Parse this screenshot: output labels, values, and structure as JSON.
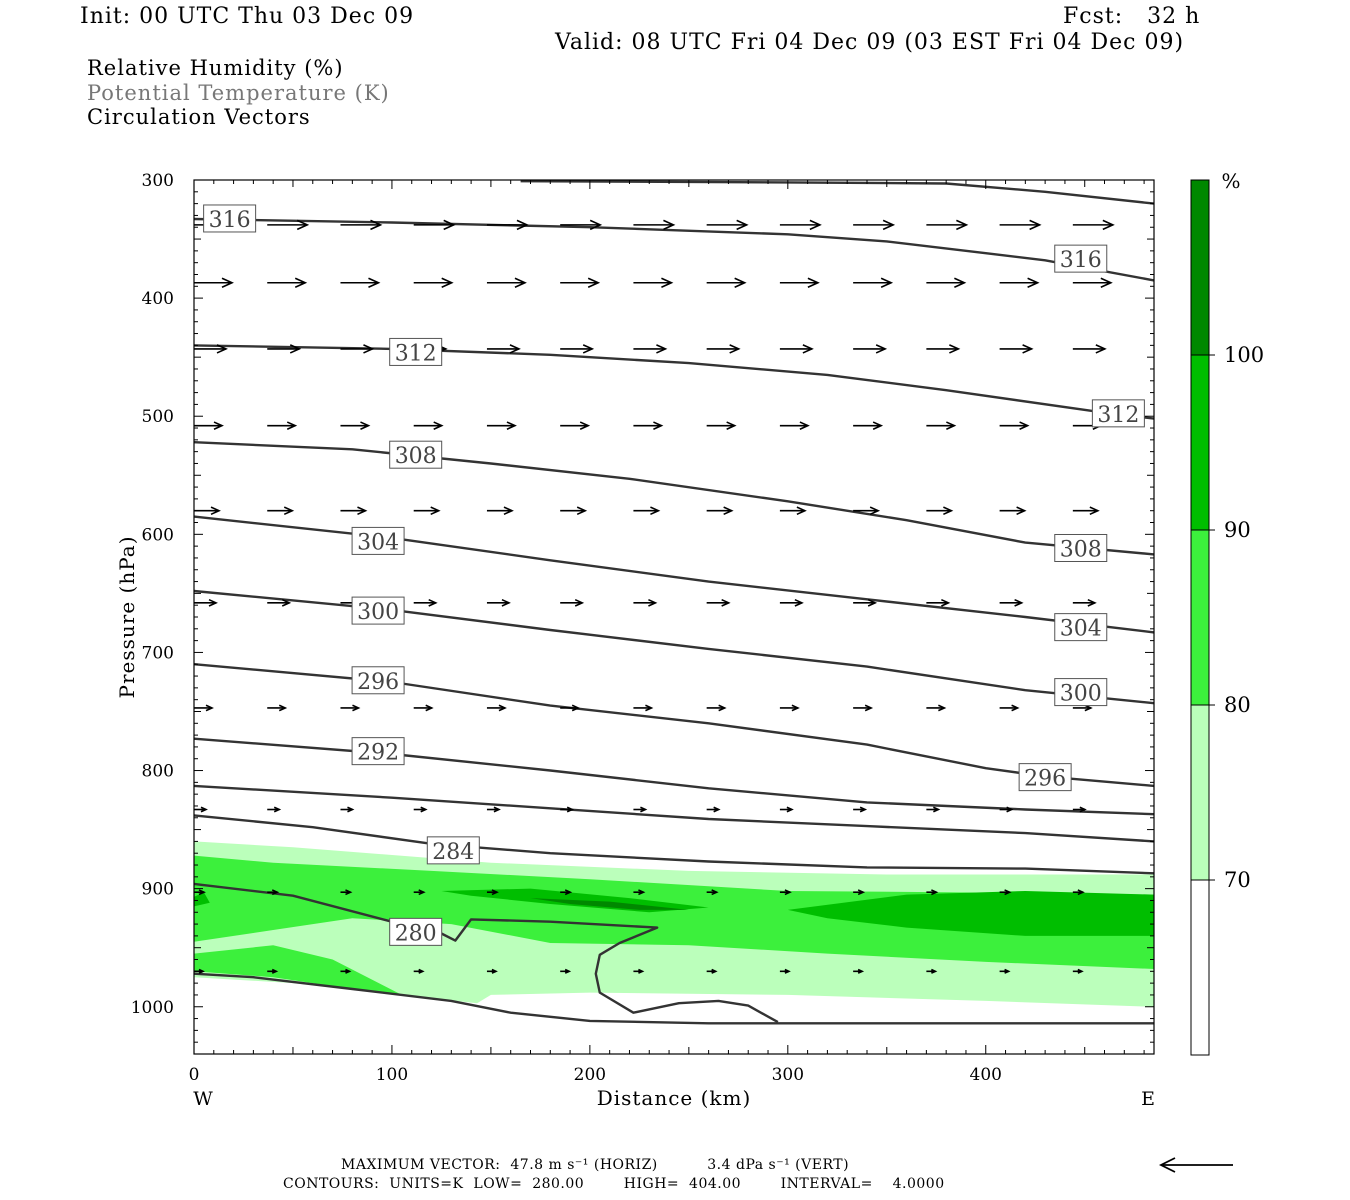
{
  "header": {
    "init": "Init: 00 UTC Thu 03 Dec 09",
    "fcst": "Fcst:   32 h",
    "valid": "Valid: 08 UTC Fri 04 Dec 09 (03 EST Fri 04 Dec 09)"
  },
  "legend_lines": {
    "rh": "Relative Humidity (%)",
    "theta": "Potential Temperature (K)",
    "vectors": "Circulation Vectors"
  },
  "footer": {
    "max_vector": "MAXIMUM VECTOR:  47.8 m s⁻¹ (HORIZ)          3.4 dPa s⁻¹ (VERT)",
    "contours": "CONTOURS:  UNITS=K  LOW=  280.00        HIGH=  404.00        INTERVAL=    4.0000"
  },
  "colors": {
    "rh_70": "#bbffbb",
    "rh_80": "#3cf03c",
    "rh_90": "#00be00",
    "rh_100": "#008800",
    "contour": "#333333"
  },
  "chart_data": {
    "type": "cross-section",
    "xlabel": "Distance (km)",
    "ylabel": "Pressure (hPa)",
    "xlim": [
      0,
      485
    ],
    "ylim": [
      300,
      1040
    ],
    "y_log": false,
    "x_ticks": [
      "0",
      "100",
      "200",
      "300",
      "400"
    ],
    "y_ticks": [
      "300",
      "400",
      "500",
      "600",
      "700",
      "800",
      "900",
      "1000"
    ],
    "x_end_labels": {
      "left": "W",
      "right": "E"
    },
    "colorbar": {
      "unit": "%",
      "levels": [
        70,
        80,
        90,
        100
      ],
      "labels": [
        "70",
        "80",
        "90",
        "100"
      ]
    },
    "rh_fill": [
      {
        "level": 70,
        "points": [
          [
            0,
            860
          ],
          [
            50,
            865
          ],
          [
            150,
            878
          ],
          [
            250,
            885
          ],
          [
            350,
            888
          ],
          [
            485,
            888
          ],
          [
            485,
            1000
          ],
          [
            400,
            995
          ],
          [
            300,
            990
          ],
          [
            200,
            988
          ],
          [
            150,
            990
          ],
          [
            143,
            997
          ],
          [
            105,
            990
          ],
          [
            50,
            980
          ],
          [
            0,
            975
          ]
        ]
      },
      {
        "level": 80,
        "points": [
          [
            0,
            872
          ],
          [
            40,
            878
          ],
          [
            120,
            885
          ],
          [
            200,
            892
          ],
          [
            260,
            898
          ],
          [
            300,
            902
          ],
          [
            380,
            903
          ],
          [
            485,
            905
          ],
          [
            485,
            968
          ],
          [
            400,
            962
          ],
          [
            320,
            955
          ],
          [
            250,
            948
          ],
          [
            180,
            946
          ],
          [
            130,
            930
          ],
          [
            80,
            925
          ],
          [
            40,
            935
          ],
          [
            0,
            945
          ]
        ]
      },
      {
        "level": 80,
        "points": [
          [
            0,
            955
          ],
          [
            40,
            948
          ],
          [
            70,
            960
          ],
          [
            105,
            990
          ],
          [
            80,
            985
          ],
          [
            40,
            975
          ],
          [
            0,
            970
          ]
        ]
      },
      {
        "level": 90,
        "points": [
          [
            125,
            902
          ],
          [
            170,
            900
          ],
          [
            220,
            908
          ],
          [
            260,
            916
          ],
          [
            230,
            920
          ],
          [
            180,
            913
          ],
          [
            140,
            906
          ]
        ]
      },
      {
        "level": 90,
        "points": [
          [
            300,
            918
          ],
          [
            360,
            905
          ],
          [
            420,
            902
          ],
          [
            485,
            905
          ],
          [
            485,
            940
          ],
          [
            420,
            940
          ],
          [
            360,
            933
          ],
          [
            320,
            925
          ]
        ]
      },
      {
        "level": 90,
        "points": [
          [
            0,
            907
          ],
          [
            5,
            903
          ],
          [
            8,
            912
          ],
          [
            0,
            915
          ]
        ]
      },
      {
        "level": 100,
        "points": [
          [
            170,
            908
          ],
          [
            210,
            911
          ],
          [
            250,
            918
          ],
          [
            225,
            918
          ],
          [
            190,
            913
          ]
        ]
      }
    ],
    "theta_contours": [
      {
        "value": 316,
        "label": "316",
        "points": [
          [
            0,
            333
          ],
          [
            100,
            336
          ],
          [
            200,
            340
          ],
          [
            300,
            346
          ],
          [
            350,
            352
          ],
          [
            400,
            362
          ],
          [
            430,
            368
          ],
          [
            485,
            385
          ]
        ],
        "label_positions": [
          [
            18,
            333
          ],
          [
            448,
            367
          ]
        ]
      },
      {
        "value": 316,
        "label": "",
        "points": [
          [
            165,
            301
          ],
          [
            300,
            302
          ],
          [
            380,
            303
          ],
          [
            430,
            310
          ],
          [
            485,
            320
          ]
        ],
        "label_positions": []
      },
      {
        "value": 312,
        "label": "312",
        "points": [
          [
            0,
            440
          ],
          [
            100,
            443
          ],
          [
            180,
            448
          ],
          [
            250,
            455
          ],
          [
            320,
            465
          ],
          [
            380,
            478
          ],
          [
            460,
            497
          ],
          [
            485,
            502
          ]
        ],
        "label_positions": [
          [
            112,
            446
          ],
          [
            467,
            498
          ]
        ]
      },
      {
        "value": 308,
        "label": "308",
        "points": [
          [
            0,
            522
          ],
          [
            80,
            528
          ],
          [
            150,
            540
          ],
          [
            220,
            553
          ],
          [
            300,
            572
          ],
          [
            360,
            588
          ],
          [
            420,
            607
          ],
          [
            485,
            617
          ]
        ],
        "label_positions": [
          [
            112,
            533
          ],
          [
            448,
            612
          ]
        ]
      },
      {
        "value": 304,
        "label": "304",
        "points": [
          [
            0,
            585
          ],
          [
            100,
            603
          ],
          [
            180,
            622
          ],
          [
            260,
            640
          ],
          [
            340,
            655
          ],
          [
            420,
            670
          ],
          [
            485,
            683
          ]
        ],
        "label_positions": [
          [
            93,
            606
          ],
          [
            448,
            679
          ]
        ]
      },
      {
        "value": 300,
        "label": "300",
        "points": [
          [
            0,
            648
          ],
          [
            100,
            664
          ],
          [
            180,
            681
          ],
          [
            260,
            697
          ],
          [
            340,
            712
          ],
          [
            420,
            732
          ],
          [
            485,
            743
          ]
        ],
        "label_positions": [
          [
            93,
            665
          ],
          [
            448,
            734
          ]
        ]
      },
      {
        "value": 296,
        "label": "296",
        "points": [
          [
            0,
            710
          ],
          [
            100,
            725
          ],
          [
            180,
            745
          ],
          [
            260,
            760
          ],
          [
            340,
            778
          ],
          [
            400,
            798
          ],
          [
            430,
            805
          ],
          [
            485,
            813
          ]
        ],
        "label_positions": [
          [
            93,
            724
          ],
          [
            430,
            806
          ]
        ]
      },
      {
        "value": 292,
        "label": "292",
        "points": [
          [
            0,
            773
          ],
          [
            100,
            786
          ],
          [
            180,
            800
          ],
          [
            260,
            815
          ],
          [
            340,
            827
          ],
          [
            420,
            833
          ],
          [
            485,
            837
          ]
        ],
        "label_positions": [
          [
            93,
            784
          ],
          [
            0,
            0
          ]
        ]
      },
      {
        "value": 288,
        "label": "",
        "points": [
          [
            0,
            813
          ],
          [
            100,
            823
          ],
          [
            180,
            832
          ],
          [
            260,
            841
          ],
          [
            340,
            847
          ],
          [
            420,
            853
          ],
          [
            485,
            860
          ]
        ],
        "label_positions": []
      },
      {
        "value": 284,
        "label": "284",
        "points": [
          [
            0,
            838
          ],
          [
            60,
            848
          ],
          [
            120,
            862
          ],
          [
            180,
            870
          ],
          [
            260,
            877
          ],
          [
            340,
            882
          ],
          [
            420,
            883
          ],
          [
            485,
            887
          ]
        ],
        "label_positions": [
          [
            131,
            868
          ]
        ]
      },
      {
        "value": 280,
        "label": "280",
        "points": [
          [
            0,
            896
          ],
          [
            50,
            906
          ],
          [
            100,
            928
          ],
          [
            125,
            938
          ],
          [
            132,
            944
          ],
          [
            140,
            926
          ],
          [
            180,
            928
          ],
          [
            234,
            933
          ],
          [
            215,
            946
          ],
          [
            205,
            956
          ],
          [
            203,
            972
          ],
          [
            205,
            988
          ],
          [
            222,
            1005
          ],
          [
            245,
            997
          ],
          [
            265,
            995
          ],
          [
            280,
            999
          ],
          [
            295,
            1013
          ]
        ],
        "label_positions": [
          [
            112,
            937
          ]
        ]
      },
      {
        "value": 0,
        "label": "",
        "points": [
          [
            0,
            972
          ],
          [
            30,
            975
          ],
          [
            80,
            985
          ],
          [
            130,
            995
          ],
          [
            160,
            1005
          ],
          [
            200,
            1012
          ],
          [
            260,
            1014
          ],
          [
            485,
            1014
          ]
        ],
        "label_positions": []
      }
    ],
    "vector_rows": [
      {
        "pressure": 338,
        "len": 40,
        "head": 10,
        "start": 0,
        "step": 37
      },
      {
        "pressure": 387,
        "len": 38,
        "head": 10,
        "start": 0,
        "step": 37
      },
      {
        "pressure": 443,
        "len": 32,
        "head": 9,
        "start": 0,
        "step": 37
      },
      {
        "pressure": 508,
        "len": 28,
        "head": 8,
        "start": 0,
        "step": 37
      },
      {
        "pressure": 580,
        "len": 25,
        "head": 8,
        "start": 0,
        "step": 37
      },
      {
        "pressure": 658,
        "len": 22,
        "head": 7,
        "start": 0,
        "step": 37
      },
      {
        "pressure": 747,
        "len": 18,
        "head": 6,
        "start": 0,
        "step": 37
      },
      {
        "pressure": 833,
        "len": 12,
        "head": 5,
        "start": 0,
        "step": 37
      },
      {
        "pressure": 903,
        "len": 10,
        "head": 5,
        "start": 0,
        "step": 37
      },
      {
        "pressure": 970,
        "len": 9,
        "head": 4,
        "start": 0,
        "step": 37
      }
    ],
    "reference_vector": "left"
  }
}
